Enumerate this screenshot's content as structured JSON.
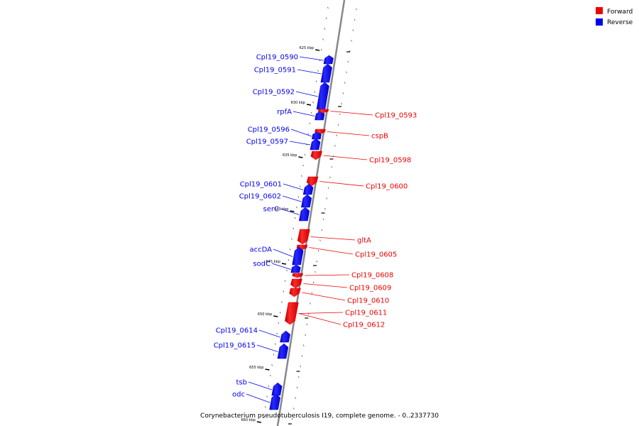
{
  "colors": {
    "forward": "#ee0000",
    "reverse": "#0000ee",
    "backbone": "#888888"
  },
  "legend": [
    {
      "label": "Forward",
      "strand": "forward"
    },
    {
      "label": "Reverse",
      "strand": "reverse"
    }
  ],
  "caption": "Corynebacterium pseudotuberculosis I19, complete genome. - 0..2337730",
  "kbp_marks": [
    "625 kbp",
    "630 kbp",
    "635 kbp",
    "640 kbp",
    "645 kbp",
    "650 kbp",
    "655 kbp",
    "660 kbp"
  ],
  "genes": [
    {
      "name": "Cpl19_0590",
      "strand": "reverse"
    },
    {
      "name": "Cpl19_0591",
      "strand": "reverse"
    },
    {
      "name": "Cpl19_0592",
      "strand": "reverse"
    },
    {
      "name": "rpfA",
      "strand": "reverse"
    },
    {
      "name": "Cpl19_0593",
      "strand": "forward"
    },
    {
      "name": "cspB",
      "strand": "forward"
    },
    {
      "name": "Cpl19_0596",
      "strand": "reverse"
    },
    {
      "name": "Cpl19_0597",
      "strand": "reverse"
    },
    {
      "name": "Cpl19_0598",
      "strand": "forward"
    },
    {
      "name": "Cpl19_0600",
      "strand": "forward"
    },
    {
      "name": "Cpl19_0601",
      "strand": "reverse"
    },
    {
      "name": "Cpl19_0602",
      "strand": "reverse"
    },
    {
      "name": "serC",
      "strand": "reverse"
    },
    {
      "name": "gltA",
      "strand": "forward"
    },
    {
      "name": "Cpl19_0605",
      "strand": "forward"
    },
    {
      "name": "accDA",
      "strand": "reverse"
    },
    {
      "name": "sodC",
      "strand": "reverse"
    },
    {
      "name": "Cpl19_0608",
      "strand": "forward"
    },
    {
      "name": "Cpl19_0609",
      "strand": "forward"
    },
    {
      "name": "Cpl19_0610",
      "strand": "forward"
    },
    {
      "name": "Cpl19_0611",
      "strand": "forward"
    },
    {
      "name": "Cpl19_0612",
      "strand": "forward"
    },
    {
      "name": "Cpl19_0614",
      "strand": "reverse"
    },
    {
      "name": "Cpl19_0615",
      "strand": "reverse"
    },
    {
      "name": "tsb",
      "strand": "reverse"
    },
    {
      "name": "odc",
      "strand": "reverse"
    }
  ]
}
